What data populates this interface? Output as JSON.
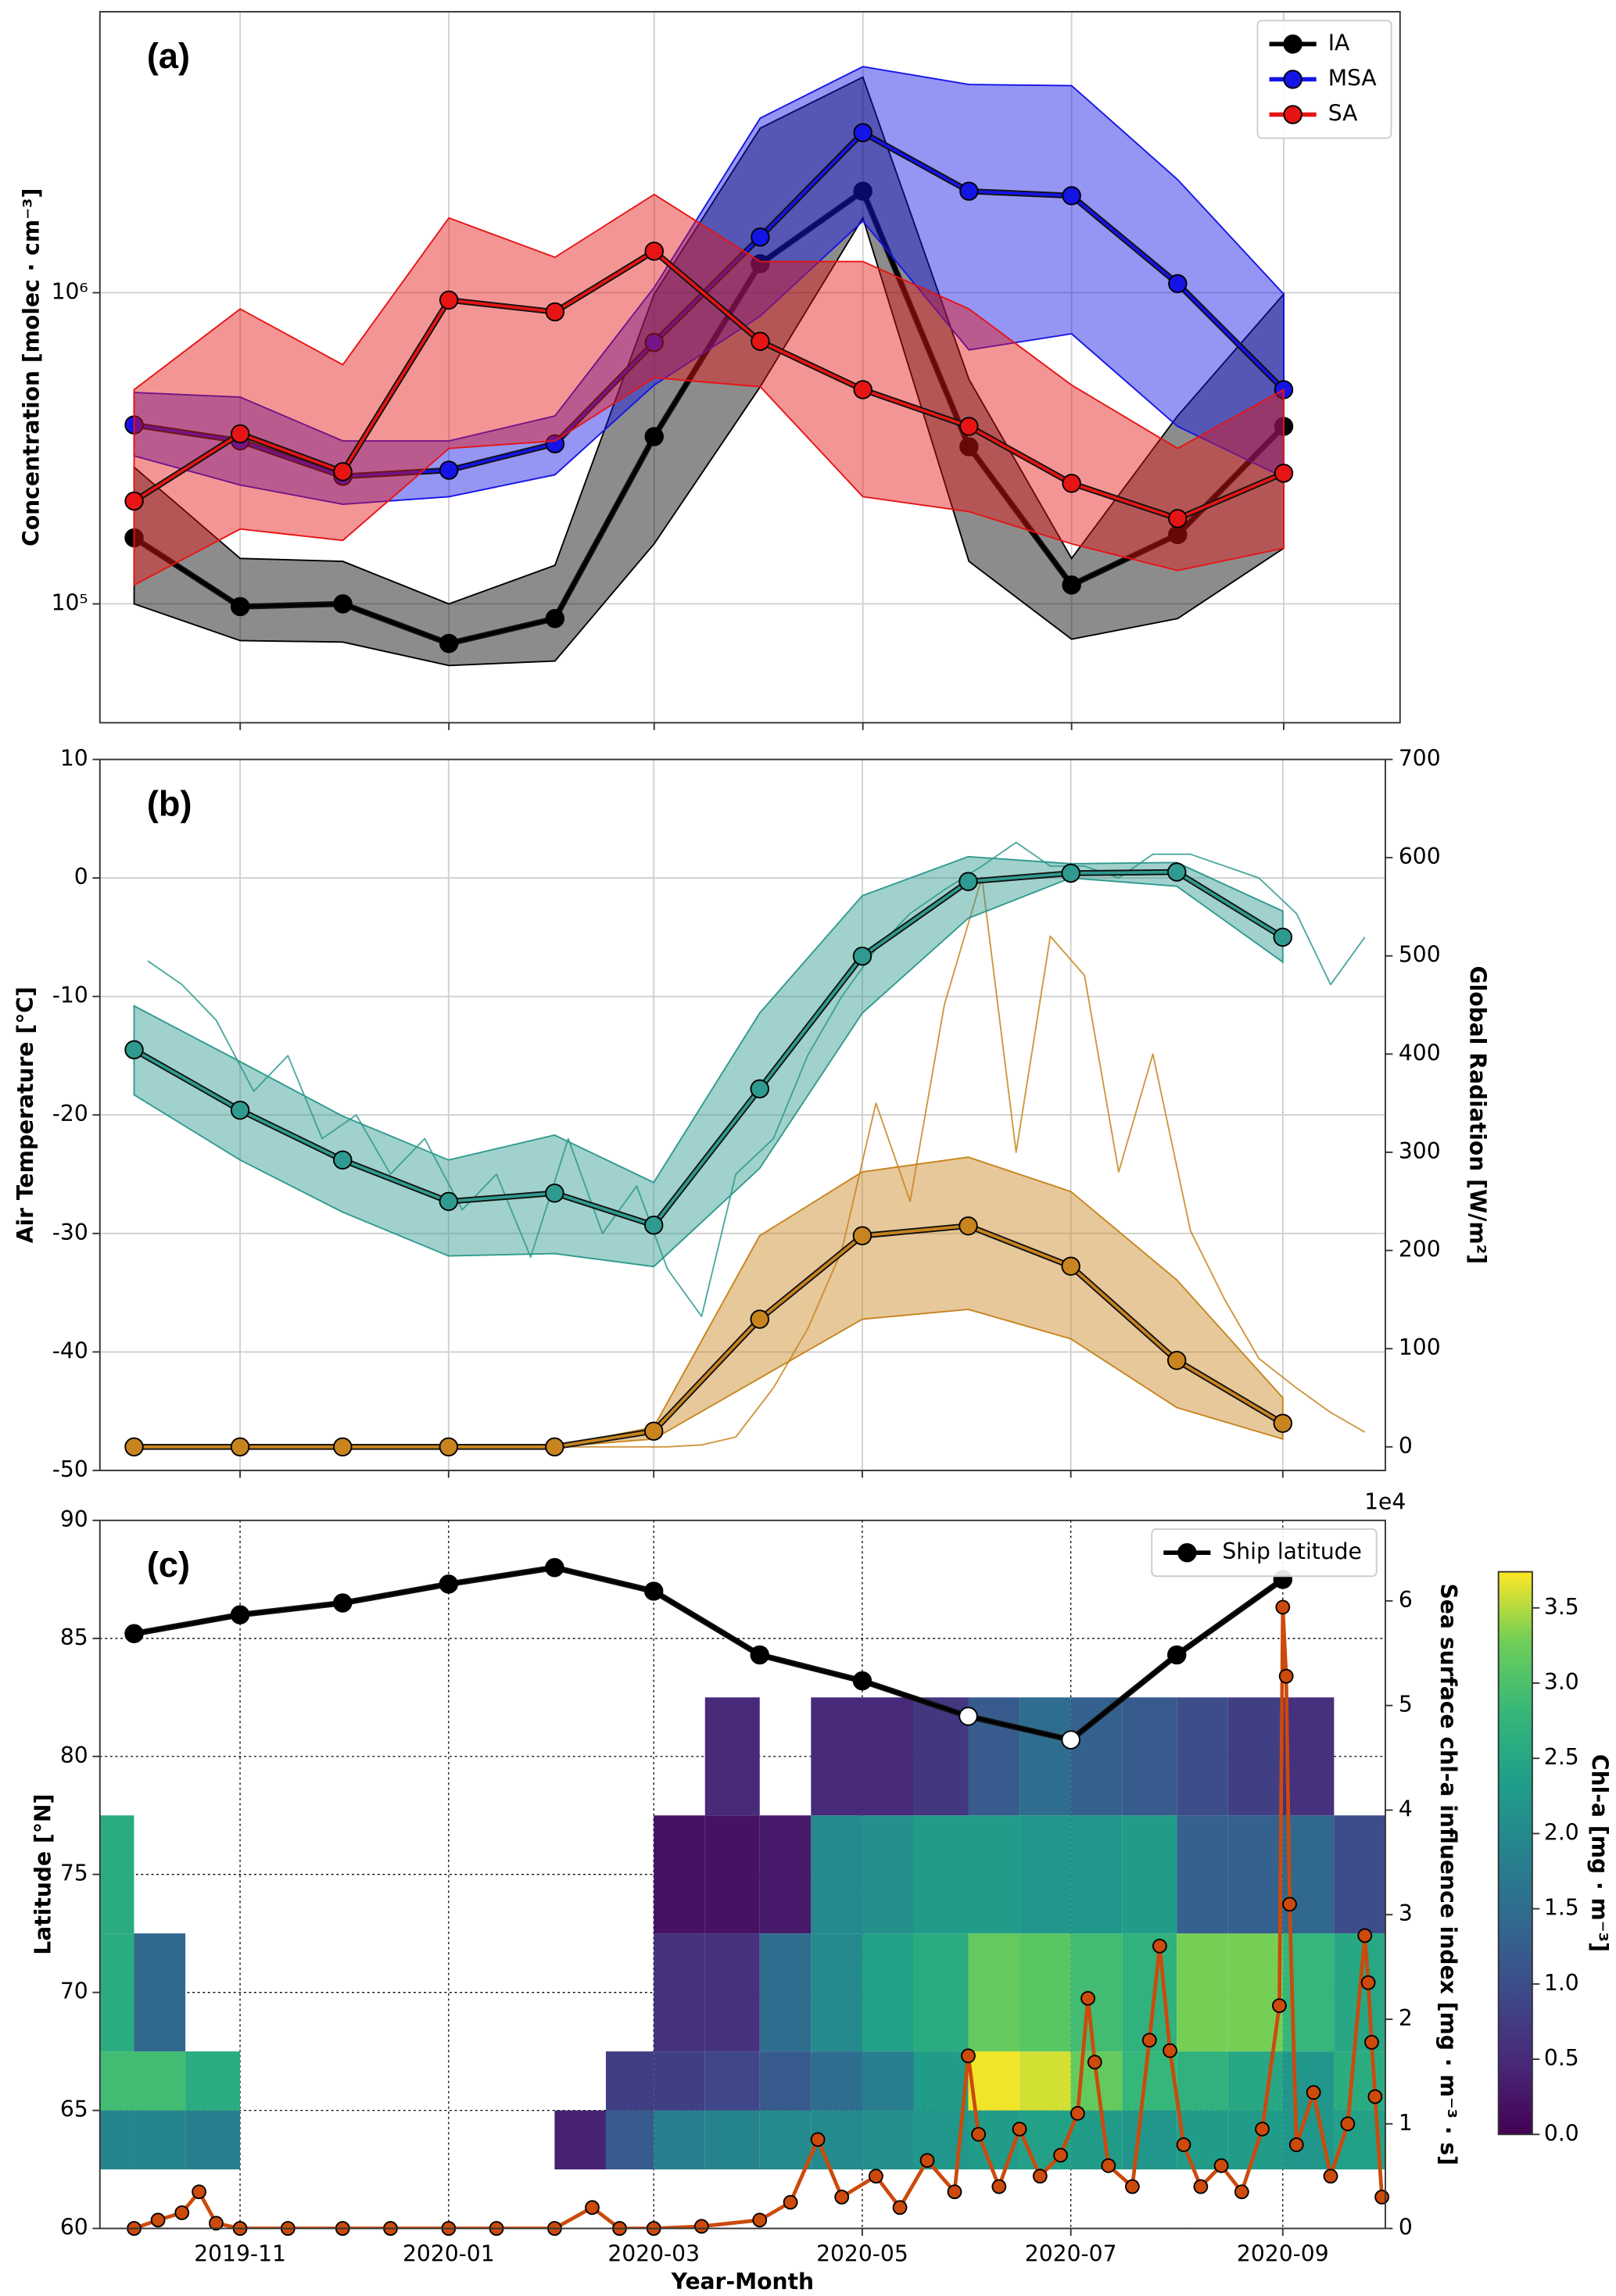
{
  "chart_data": [
    {
      "type": "line",
      "panel_label": "(a)",
      "y_label": "Concentration [molec · cm⁻³]",
      "yscale": "log",
      "xlim": [
        "2019-09-21",
        "2020-10-05"
      ],
      "ylim": [
        41500,
        8000000
      ],
      "yticks": [
        {
          "value": 100000,
          "label": "10⁵"
        },
        {
          "value": 1000000,
          "label": "10⁶"
        }
      ],
      "xticks": [
        "2019-11",
        "2020-01",
        "2020-03",
        "2020-05",
        "2020-07",
        "2020-09"
      ],
      "show_xtick_labels": false,
      "grid": true,
      "legend": "upper right",
      "x": [
        "2019-10",
        "2019-11",
        "2019-12",
        "2020-01",
        "2020-02",
        "2020-03",
        "2020-04",
        "2020-05",
        "2020-06",
        "2020-07",
        "2020-08",
        "2020-09"
      ],
      "series": [
        {
          "name": "IA",
          "color": "#000000",
          "values": [
            163000,
            98000,
            100000,
            74600,
            89700,
            345000,
            1240000,
            2120000,
            320000,
            115000,
            167000,
            372000
          ],
          "lower": [
            100000,
            76200,
            75400,
            63400,
            65500,
            156000,
            499000,
            1740000,
            137000,
            77000,
            89700,
            151000
          ],
          "upper": [
            275000,
            140000,
            137000,
            100000,
            133000,
            990000,
            3380000,
            4930000,
            527000,
            140000,
            402000,
            990000
          ]
        },
        {
          "name": "MSA",
          "color": "#1414e6",
          "values": [
            376000,
            334000,
            257000,
            269000,
            327000,
            692000,
            1510000,
            3270000,
            2120000,
            2050000,
            1070000,
            488000
          ],
          "lower": [
            299000,
            241000,
            209000,
            221000,
            260000,
            505000,
            841000,
            1700000,
            655000,
            738000,
            372000,
            255000
          ],
          "upper": [
            478000,
            462000,
            334000,
            334000,
            402000,
            1040000,
            3640000,
            5330000,
            4670000,
            4630000,
            2310000,
            990000
          ]
        },
        {
          "name": "SA",
          "color": "#e61414",
          "values": [
            214000,
            352000,
            266000,
            947000,
            868000,
            1360000,
            698000,
            488000,
            372000,
            244000,
            188000,
            263000
          ],
          "lower": [
            115000,
            174000,
            160000,
            316000,
            334000,
            533000,
            499000,
            221000,
            198000,
            156000,
            128000,
            151000
          ],
          "upper": [
            488000,
            887000,
            587000,
            1740000,
            1300000,
            2070000,
            1260000,
            1260000,
            887000,
            505000,
            316000,
            488000
          ]
        }
      ]
    },
    {
      "type": "line",
      "panel_label": "(b)",
      "y_label": "Air Temperature [°C]",
      "y_label_color": "#2f9a8f",
      "y2_label": "Global Radiation [W/m²]",
      "y2_label_color": "#c8841e",
      "xlim": [
        "2019-09-21",
        "2020-10-01"
      ],
      "ylim": [
        -50,
        10
      ],
      "yticks": [
        -50,
        -40,
        -30,
        -20,
        -10,
        0,
        10
      ],
      "y2lim": [
        -24,
        700
      ],
      "y2ticks": [
        0,
        100,
        200,
        300,
        400,
        500,
        600,
        700
      ],
      "xticks": [
        "2019-11",
        "2020-01",
        "2020-03",
        "2020-05",
        "2020-07",
        "2020-09"
      ],
      "show_xtick_labels": false,
      "grid": true,
      "x": [
        "2019-10",
        "2019-11",
        "2019-12",
        "2020-01",
        "2020-02",
        "2020-03",
        "2020-04",
        "2020-05",
        "2020-06",
        "2020-07",
        "2020-08",
        "2020-09"
      ],
      "series": [
        {
          "color": "#2f9a8f",
          "style": "trace",
          "x": [
            "2019-10-05",
            "2019-10-15",
            "2019-10-25",
            "2019-11-05",
            "2019-11-15",
            "2019-11-25",
            "2019-12-05",
            "2019-12-15",
            "2019-12-25",
            "2020-01-05",
            "2020-01-15",
            "2020-01-25",
            "2020-02-05",
            "2020-02-15",
            "2020-02-25",
            "2020-03-05",
            "2020-03-15",
            "2020-03-25",
            "2020-04-05",
            "2020-04-15",
            "2020-04-25",
            "2020-05-05",
            "2020-05-15",
            "2020-05-25",
            "2020-06-05",
            "2020-06-15",
            "2020-06-25",
            "2020-07-05",
            "2020-07-15",
            "2020-07-25",
            "2020-08-05",
            "2020-08-15",
            "2020-08-25",
            "2020-09-05",
            "2020-09-15",
            "2020-09-25"
          ],
          "values": [
            -7,
            -9,
            -12,
            -18,
            -15,
            -22,
            -20,
            -25,
            -22,
            -28,
            -25,
            -32,
            -22,
            -30,
            -26,
            -33,
            -37,
            -25,
            -22,
            -15,
            -10,
            -6,
            -3,
            -1,
            1,
            3,
            1,
            1,
            0,
            2,
            2,
            1,
            0,
            -3,
            -9,
            -5
          ]
        },
        {
          "color": "#c8841e",
          "axis": "y2",
          "style": "trace",
          "x": [
            "2019-10-05",
            "2019-10-15",
            "2019-10-25",
            "2019-11-05",
            "2019-11-15",
            "2019-11-25",
            "2019-12-05",
            "2019-12-15",
            "2019-12-25",
            "2020-01-05",
            "2020-01-15",
            "2020-01-25",
            "2020-02-05",
            "2020-02-15",
            "2020-02-25",
            "2020-03-05",
            "2020-03-15",
            "2020-03-25",
            "2020-04-05",
            "2020-04-15",
            "2020-04-25",
            "2020-05-05",
            "2020-05-15",
            "2020-05-25",
            "2020-06-05",
            "2020-06-15",
            "2020-06-25",
            "2020-07-05",
            "2020-07-15",
            "2020-07-25",
            "2020-08-05",
            "2020-08-15",
            "2020-08-25",
            "2020-09-05",
            "2020-09-15",
            "2020-09-25"
          ],
          "values": [
            0,
            0,
            0,
            0,
            0,
            0,
            0,
            0,
            0,
            0,
            0,
            0,
            0,
            0,
            0,
            0,
            2,
            10,
            60,
            120,
            200,
            350,
            250,
            450,
            580,
            300,
            520,
            480,
            280,
            400,
            220,
            150,
            90,
            60,
            35,
            15
          ]
        },
        {
          "color": "#2f9a8f",
          "values": [
            -14.5,
            -19.6,
            -23.8,
            -27.3,
            -26.6,
            -29.3,
            -17.8,
            -6.6,
            -0.3,
            0.4,
            0.5,
            -5.0
          ],
          "lower": [
            -18.3,
            -23.8,
            -28.2,
            -31.9,
            -31.7,
            -32.8,
            -24.5,
            -11.4,
            -3.4,
            0,
            -0.7,
            -7.1
          ],
          "upper": [
            -10.8,
            -15.5,
            -20.1,
            -23.8,
            -21.7,
            -25.7,
            -11.4,
            -1.5,
            1.8,
            1.2,
            1.3,
            -2.8
          ]
        },
        {
          "color": "#c8841e",
          "axis": "y2",
          "values": [
            0,
            0,
            0,
            0,
            0,
            16,
            130,
            215,
            225,
            184,
            88,
            24
          ],
          "lower": [
            0,
            0,
            0,
            0,
            0,
            8,
            70,
            130,
            140,
            110,
            40,
            8
          ],
          "upper": [
            0,
            0,
            0,
            0,
            0,
            20,
            215,
            280,
            295,
            260,
            170,
            50
          ]
        }
      ]
    },
    {
      "type": "heatmap",
      "panel_label": "(c)",
      "x_label": "Year-Month",
      "y_label": "Latitude [°N]",
      "y2_label": "Sea surface chl-a influence index [mg · m⁻³ · s]",
      "y2_label_color": "#cc4a0c",
      "y2_offset_label": "1e4",
      "xlim": [
        "2019-09-21",
        "2020-10-01"
      ],
      "ylim": [
        60,
        90
      ],
      "yticks": [
        60,
        65,
        70,
        75,
        80,
        85,
        90
      ],
      "y2lim": [
        0,
        67700
      ],
      "y2ticks": [
        0,
        {
          "value": 10000,
          "label": "1"
        },
        {
          "value": 20000,
          "label": "2"
        },
        {
          "value": 30000,
          "label": "3"
        },
        {
          "value": 40000,
          "label": "4"
        },
        {
          "value": 50000,
          "label": "5"
        },
        {
          "value": 60000,
          "label": "6"
        }
      ],
      "xticks": [
        "2019-11",
        "2020-01",
        "2020-03",
        "2020-05",
        "2020-07",
        "2020-09"
      ],
      "grid": "dotted",
      "legend": "upper right",
      "colormap": "viridis",
      "clim": [
        0,
        3.74
      ],
      "cticks": [
        {
          "value": 0,
          "label": "0.0"
        },
        0.5,
        {
          "value": 1,
          "label": "1.0"
        },
        1.5,
        {
          "value": 2,
          "label": "2.0"
        },
        2.5,
        {
          "value": 3,
          "label": "3.0"
        },
        3.5
      ],
      "colorbar_label": "Chl-a [mg · m⁻³]",
      "x_edges": [
        "2019-09-21",
        "2019-10-01",
        "2019-10-16",
        "2019-11-01",
        "2019-11-16",
        "2019-12-01",
        "2019-12-16",
        "2020-01-01",
        "2020-01-16",
        "2020-02-01",
        "2020-02-16",
        "2020-03-01",
        "2020-03-16",
        "2020-04-01",
        "2020-04-16",
        "2020-05-01",
        "2020-05-16",
        "2020-06-01",
        "2020-06-16",
        "2020-07-01",
        "2020-07-16",
        "2020-08-01",
        "2020-08-16",
        "2020-09-01",
        "2020-09-16",
        "2020-10-01"
      ],
      "y_edges": [
        62.5,
        65,
        67.5,
        72.5,
        77.5,
        82.5
      ],
      "z": [
        [
          1.9,
          1.9,
          1.8,
          null,
          null,
          null,
          null,
          null,
          null,
          0.4,
          1.2,
          1.8,
          1.9,
          2.0,
          2.0,
          2.1,
          2.2,
          2.3,
          2.4,
          2.3,
          2.2,
          2.3,
          2.3,
          2.2,
          2.4
        ],
        [
          2.9,
          2.9,
          2.6,
          null,
          null,
          null,
          null,
          null,
          null,
          null,
          0.8,
          0.8,
          0.9,
          1.2,
          1.5,
          1.8,
          2.3,
          3.7,
          3.6,
          3.2,
          2.8,
          2.7,
          2.5,
          2.2,
          2.6
        ],
        [
          2.6,
          1.4,
          null,
          null,
          null,
          null,
          null,
          null,
          null,
          null,
          null,
          0.6,
          0.6,
          1.5,
          2.0,
          2.4,
          2.6,
          3.2,
          3.1,
          2.9,
          2.7,
          3.3,
          3.3,
          2.8,
          2.5
        ],
        [
          2.6,
          null,
          null,
          null,
          null,
          null,
          null,
          null,
          null,
          null,
          null,
          0.2,
          0.2,
          0.3,
          2.0,
          2.1,
          2.3,
          2.3,
          2.2,
          2.2,
          2.3,
          1.3,
          1.3,
          1.4,
          1.0
        ],
        [
          null,
          null,
          null,
          null,
          null,
          null,
          null,
          null,
          null,
          null,
          null,
          null,
          0.5,
          null,
          0.5,
          0.5,
          0.7,
          1.2,
          1.5,
          1.3,
          1.2,
          1.0,
          0.8,
          0.6,
          null
        ]
      ],
      "series": [
        {
          "color": "#cc4a0c",
          "axis": "y2",
          "style": "index",
          "x": [
            "2019-10-01",
            "2019-10-08",
            "2019-10-15",
            "2019-10-20",
            "2019-10-25",
            "2019-11-01",
            "2019-11-15",
            "2019-12-01",
            "2019-12-15",
            "2020-01-01",
            "2020-01-15",
            "2020-02-01",
            "2020-02-12",
            "2020-02-20",
            "2020-03-01",
            "2020-03-15",
            "2020-04-01",
            "2020-04-10",
            "2020-04-18",
            "2020-04-25",
            "2020-05-05",
            "2020-05-12",
            "2020-05-20",
            "2020-05-28",
            "2020-06-01",
            "2020-06-04",
            "2020-06-10",
            "2020-06-16",
            "2020-06-22",
            "2020-06-28",
            "2020-07-03",
            "2020-07-06",
            "2020-07-08",
            "2020-07-12",
            "2020-07-19",
            "2020-07-24",
            "2020-07-27",
            "2020-07-30",
            "2020-08-03",
            "2020-08-08",
            "2020-08-14",
            "2020-08-20",
            "2020-08-26",
            "2020-08-31",
            "2020-09-01",
            "2020-09-02",
            "2020-09-03",
            "2020-09-05",
            "2020-09-10",
            "2020-09-15",
            "2020-09-20",
            "2020-09-25",
            "2020-09-26",
            "2020-09-27",
            "2020-09-28",
            "2020-09-30"
          ],
          "values": [
            0,
            800,
            1500,
            3500,
            500,
            0,
            0,
            0,
            0,
            0,
            0,
            0,
            2000,
            0,
            0,
            200,
            800,
            2500,
            8500,
            3000,
            5000,
            2000,
            6500,
            3500,
            16500,
            9000,
            4000,
            9500,
            5000,
            7000,
            11000,
            22000,
            15900,
            6000,
            4000,
            18000,
            27000,
            17000,
            8000,
            4000,
            6000,
            3500,
            9500,
            21300,
            59400,
            52800,
            31000,
            8000,
            13000,
            5000,
            10000,
            28000,
            23500,
            17800,
            12600,
            3000
          ]
        },
        {
          "name": "Ship latitude",
          "color": "#000000",
          "x": [
            "2019-10",
            "2019-11",
            "2019-12",
            "2020-01",
            "2020-02",
            "2020-03",
            "2020-04",
            "2020-05",
            "2020-06",
            "2020-07",
            "2020-08",
            "2020-09"
          ],
          "values": [
            85.2,
            86.0,
            86.5,
            87.3,
            88.0,
            87.0,
            84.3,
            83.2,
            81.7,
            80.7,
            84.3,
            87.5
          ],
          "marker_colors": [
            "#000000",
            "#000000",
            "#000000",
            "#000000",
            "#000000",
            "#000000",
            "#000000",
            "#000000",
            "#ffffff",
            "#ffffff",
            "#000000",
            "#000000"
          ]
        }
      ]
    }
  ]
}
